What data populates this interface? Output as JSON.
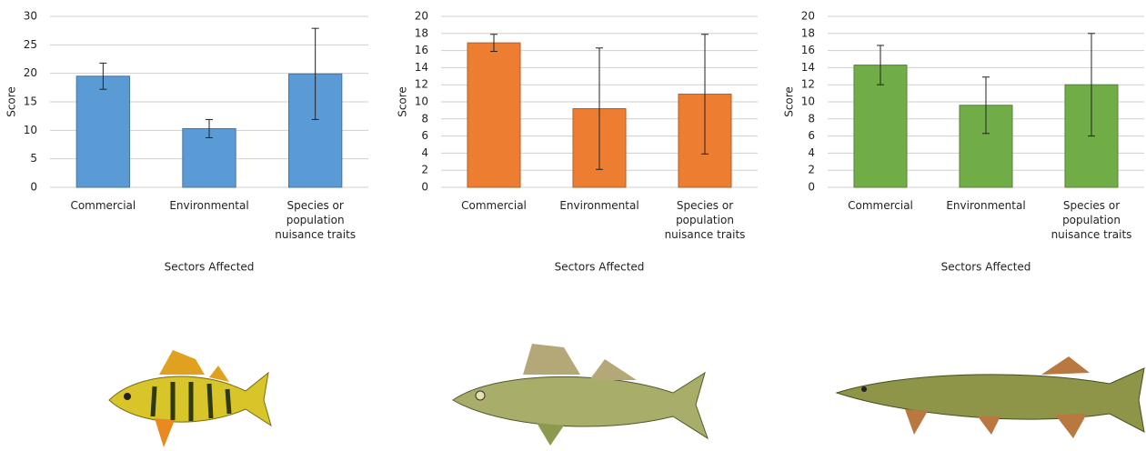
{
  "chart_data": [
    {
      "type": "bar",
      "ylabel": "Score",
      "xlabel": "Sectors Affected",
      "categories": [
        "Commercial",
        "Environmental",
        "Species or population nuisance traits"
      ],
      "values": [
        19.5,
        10.3,
        19.9
      ],
      "errors": [
        2.3,
        1.6,
        8
      ],
      "color": "#5b9bd5",
      "ylim": [
        0,
        30
      ],
      "yticks": [
        0,
        5,
        10,
        15,
        20,
        25,
        30
      ],
      "grid": true
    },
    {
      "type": "bar",
      "ylabel": "Score",
      "xlabel": "Sectors Affected",
      "categories": [
        "Commercial",
        "Environmental",
        "Species or population nuisance traits"
      ],
      "values": [
        16.9,
        9.2,
        10.9
      ],
      "errors": [
        1,
        7.1,
        7
      ],
      "color": "#ed7d31",
      "ylim": [
        0,
        20
      ],
      "yticks": [
        0,
        2,
        4,
        6,
        8,
        10,
        12,
        14,
        16,
        18,
        20
      ],
      "grid": true
    },
    {
      "type": "bar",
      "ylabel": "Score",
      "xlabel": "Sectors Affected",
      "categories": [
        "Commercial",
        "Environmental",
        "Species or population nuisance traits"
      ],
      "values": [
        14.3,
        9.6,
        12
      ],
      "errors": [
        2.3,
        3.3,
        6
      ],
      "color": "#70ad47",
      "ylim": [
        0,
        20
      ],
      "yticks": [
        0,
        2,
        4,
        6,
        8,
        10,
        12,
        14,
        16,
        18,
        20
      ],
      "grid": true
    }
  ]
}
